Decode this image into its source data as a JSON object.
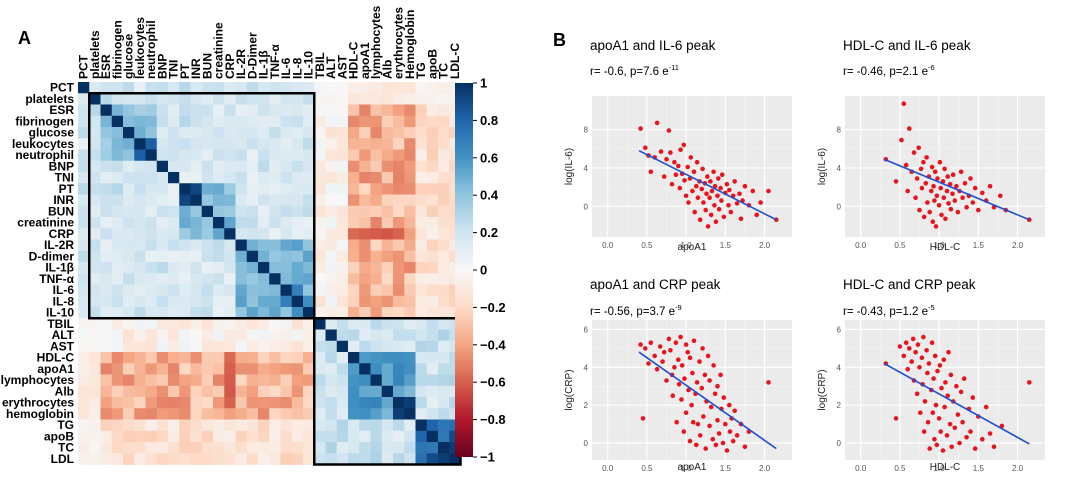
{
  "panel_a_label": "A",
  "panel_b_label": "B",
  "chart_data": [
    {
      "type": "heatmap",
      "title": "Correlation matrix",
      "variables_top": [
        "PCT",
        "platelets",
        "ESR",
        "fibrinogen",
        "glucose",
        "leukocytes",
        "neutrophil",
        "BNP",
        "TNI",
        "PT",
        "INR",
        "BUN",
        "creatinine",
        "CRP",
        "IL-2R",
        "D-Dimer",
        "IL-1β",
        "TNF-α",
        "IL-6",
        "IL-8",
        "IL-10",
        "TBIL",
        "ALT",
        "AST",
        "HDL-C",
        "apoA1",
        "lymphocytes",
        "Alb",
        "erythrocytes",
        "Hemoglobin",
        "TG",
        "apoB",
        "TC",
        "LDL-C"
      ],
      "variables_left": [
        "PCT",
        "platelets",
        "ESR",
        "fibrinogen",
        "glucose",
        "leukocytes",
        "neutrophil",
        "BNP",
        "TNI",
        "PT",
        "INR",
        "BUN",
        "creatinine",
        "CRP",
        "IL-2R",
        "D-dimer",
        "IL-1β",
        "TNF-α",
        "IL-6",
        "IL-8",
        "IL-10",
        "TBIL",
        "ALT",
        "AST",
        "HDL-C",
        "apoA1",
        "lymphocytes",
        "Alb",
        "erythrocytes",
        "hemoglobin",
        "TG",
        "apoB",
        "TC",
        "LDL"
      ],
      "colorbar": {
        "min": -1,
        "max": 1,
        "ticks": [
          "1",
          "0.8",
          "0.6",
          "0.4",
          "0.2",
          "0",
          "−0.2",
          "−0.4",
          "−0.6",
          "−0.8",
          "−1"
        ]
      },
      "clusters": [
        {
          "from": 1,
          "to": 20
        },
        {
          "from": 21,
          "to": 33
        }
      ],
      "colors": {
        "positive": "#053061",
        "neutral": "#f7f7f7",
        "negative": "#67001f",
        "box": "#000000"
      }
    },
    {
      "type": "scatter",
      "title": "apoA1 and IL-6 peak",
      "stat": {
        "r": "r= -0.6,",
        "p": "p=7.6 e",
        "exp": "-11"
      },
      "xlabel": "apoA1",
      "ylabel": "log(IL-6)",
      "xlim": [
        -0.2,
        2.35
      ],
      "ylim": [
        -3.2,
        11.5
      ],
      "xticks": [
        0.0,
        0.5,
        1.0,
        1.5,
        2.0
      ],
      "yticks": [
        0,
        4,
        8
      ],
      "fit": {
        "x": [
          0.4,
          2.15
        ],
        "y": [
          5.8,
          -1.4
        ]
      },
      "points": [
        [
          0.42,
          8.1
        ],
        [
          0.48,
          6.1
        ],
        [
          0.52,
          5.3
        ],
        [
          0.55,
          3.6
        ],
        [
          0.6,
          5.1
        ],
        [
          0.63,
          8.7
        ],
        [
          0.68,
          5.7
        ],
        [
          0.72,
          3.1
        ],
        [
          0.75,
          4.9
        ],
        [
          0.78,
          7.9
        ],
        [
          0.8,
          5.6
        ],
        [
          0.82,
          2.3
        ],
        [
          0.85,
          4.6
        ],
        [
          0.87,
          3.3
        ],
        [
          0.9,
          4.2
        ],
        [
          0.92,
          1.9
        ],
        [
          0.93,
          5.9
        ],
        [
          0.95,
          3.4
        ],
        [
          0.97,
          6.4
        ],
        [
          0.98,
          2.7
        ],
        [
          1.0,
          1.1
        ],
        [
          1.02,
          4.1
        ],
        [
          1.03,
          0.4
        ],
        [
          1.05,
          2.9
        ],
        [
          1.06,
          5.1
        ],
        [
          1.08,
          1.6
        ],
        [
          1.1,
          3.6
        ],
        [
          1.11,
          -0.6
        ],
        [
          1.13,
          2.1
        ],
        [
          1.14,
          4.6
        ],
        [
          1.15,
          0.9
        ],
        [
          1.17,
          2.6
        ],
        [
          1.18,
          -1.4
        ],
        [
          1.2,
          1.8
        ],
        [
          1.21,
          3.9
        ],
        [
          1.22,
          0.4
        ],
        [
          1.24,
          2.4
        ],
        [
          1.25,
          -0.4
        ],
        [
          1.26,
          1.3
        ],
        [
          1.27,
          3.1
        ],
        [
          1.28,
          -2.1
        ],
        [
          1.3,
          0.9
        ],
        [
          1.31,
          2.6
        ],
        [
          1.32,
          -0.9
        ],
        [
          1.33,
          1.6
        ],
        [
          1.35,
          3.6
        ],
        [
          1.36,
          0.1
        ],
        [
          1.37,
          2.1
        ],
        [
          1.38,
          -1.6
        ],
        [
          1.4,
          1.1
        ],
        [
          1.41,
          2.9
        ],
        [
          1.42,
          -0.3
        ],
        [
          1.44,
          1.9
        ],
        [
          1.45,
          0.6
        ],
        [
          1.46,
          3.3
        ],
        [
          1.48,
          -1.1
        ],
        [
          1.5,
          1.4
        ],
        [
          1.52,
          2.3
        ],
        [
          1.54,
          0.1
        ],
        [
          1.55,
          1.7
        ],
        [
          1.57,
          -0.6
        ],
        [
          1.6,
          1.1
        ],
        [
          1.62,
          2.6
        ],
        [
          1.65,
          0.3
        ],
        [
          1.68,
          1.3
        ],
        [
          1.7,
          -1.3
        ],
        [
          1.72,
          0.6
        ],
        [
          1.75,
          2.1
        ],
        [
          1.8,
          0.1
        ],
        [
          1.85,
          1.6
        ],
        [
          1.9,
          -0.9
        ],
        [
          1.95,
          0.4
        ],
        [
          2.05,
          1.6
        ],
        [
          2.15,
          -1.4
        ]
      ]
    },
    {
      "type": "scatter",
      "title": "HDL-C and IL-6 peak",
      "stat": {
        "r": "r= -0.46,",
        "p": "p=2.1 e",
        "exp": "-6"
      },
      "xlabel": "HDL-C",
      "ylabel": "log(IL-6)",
      "xlim": [
        -0.2,
        2.35
      ],
      "ylim": [
        -3.2,
        11.5
      ],
      "xticks": [
        0.0,
        0.5,
        1.0,
        1.5,
        2.0
      ],
      "yticks": [
        0,
        4,
        8
      ],
      "fit": {
        "x": [
          0.3,
          2.15
        ],
        "y": [
          4.9,
          -1.4
        ]
      },
      "points": [
        [
          0.32,
          4.9
        ],
        [
          0.45,
          2.6
        ],
        [
          0.52,
          6.9
        ],
        [
          0.55,
          10.7
        ],
        [
          0.58,
          4.3
        ],
        [
          0.6,
          1.6
        ],
        [
          0.62,
          8.1
        ],
        [
          0.65,
          3.6
        ],
        [
          0.68,
          5.6
        ],
        [
          0.7,
          0.9
        ],
        [
          0.72,
          2.9
        ],
        [
          0.74,
          6.1
        ],
        [
          0.75,
          -0.4
        ],
        [
          0.77,
          3.9
        ],
        [
          0.78,
          1.9
        ],
        [
          0.8,
          4.6
        ],
        [
          0.81,
          -1.1
        ],
        [
          0.83,
          2.4
        ],
        [
          0.84,
          5.1
        ],
        [
          0.85,
          0.4
        ],
        [
          0.87,
          3.1
        ],
        [
          0.88,
          -0.6
        ],
        [
          0.9,
          1.6
        ],
        [
          0.91,
          4.1
        ],
        [
          0.92,
          -1.6
        ],
        [
          0.93,
          2.1
        ],
        [
          0.94,
          0.6
        ],
        [
          0.95,
          3.6
        ],
        [
          0.96,
          -2.1
        ],
        [
          0.97,
          1.1
        ],
        [
          0.98,
          2.9
        ],
        [
          1.0,
          0.1
        ],
        [
          1.01,
          4.6
        ],
        [
          1.02,
          1.9
        ],
        [
          1.03,
          -0.9
        ],
        [
          1.05,
          2.6
        ],
        [
          1.06,
          0.9
        ],
        [
          1.07,
          3.9
        ],
        [
          1.08,
          -1.3
        ],
        [
          1.1,
          1.6
        ],
        [
          1.11,
          3.1
        ],
        [
          1.12,
          0.3
        ],
        [
          1.14,
          2.3
        ],
        [
          1.15,
          -0.3
        ],
        [
          1.17,
          1.3
        ],
        [
          1.18,
          3.3
        ],
        [
          1.2,
          0.6
        ],
        [
          1.22,
          2.1
        ],
        [
          1.24,
          -0.6
        ],
        [
          1.26,
          1.6
        ],
        [
          1.28,
          3.6
        ],
        [
          1.3,
          0.9
        ],
        [
          1.33,
          2.4
        ],
        [
          1.35,
          -0.1
        ],
        [
          1.38,
          1.1
        ],
        [
          1.4,
          2.9
        ],
        [
          1.43,
          0.4
        ],
        [
          1.46,
          1.9
        ],
        [
          1.5,
          -0.4
        ],
        [
          1.55,
          1.4
        ],
        [
          1.6,
          0.6
        ],
        [
          1.65,
          2.1
        ],
        [
          1.7,
          -0.1
        ],
        [
          1.78,
          1.1
        ],
        [
          1.85,
          -0.4
        ],
        [
          2.15,
          -1.4
        ]
      ]
    },
    {
      "type": "scatter",
      "title": "apoA1 and CRP peak",
      "stat": {
        "r": "r= -0.56,",
        "p": "p=3.7 e",
        "exp": "-9"
      },
      "xlabel": "apoA1",
      "ylabel": "log(CRP)",
      "xlim": [
        -0.2,
        2.35
      ],
      "ylim": [
        -0.9,
        6.5
      ],
      "xticks": [
        0.0,
        0.5,
        1.0,
        1.5,
        2.0
      ],
      "yticks": [
        0,
        2,
        4,
        6
      ],
      "fit": {
        "x": [
          0.4,
          2.15
        ],
        "y": [
          4.8,
          -0.3
        ]
      },
      "points": [
        [
          0.42,
          5.2
        ],
        [
          0.45,
          1.3
        ],
        [
          0.48,
          5.0
        ],
        [
          0.52,
          4.2
        ],
        [
          0.55,
          5.3
        ],
        [
          0.6,
          4.6
        ],
        [
          0.63,
          3.9
        ],
        [
          0.67,
          5.1
        ],
        [
          0.7,
          4.3
        ],
        [
          0.72,
          4.8
        ],
        [
          0.75,
          3.3
        ],
        [
          0.78,
          5.5
        ],
        [
          0.8,
          4.9
        ],
        [
          0.82,
          3.6
        ],
        [
          0.83,
          2.5
        ],
        [
          0.85,
          4.0
        ],
        [
          0.87,
          5.3
        ],
        [
          0.88,
          1.1
        ],
        [
          0.9,
          4.4
        ],
        [
          0.91,
          3.1
        ],
        [
          0.93,
          5.6
        ],
        [
          0.94,
          2.3
        ],
        [
          0.95,
          4.1
        ],
        [
          0.97,
          0.6
        ],
        [
          0.98,
          3.4
        ],
        [
          1.0,
          5.2
        ],
        [
          1.0,
          1.6
        ],
        [
          1.02,
          4.8
        ],
        [
          1.03,
          2.8
        ],
        [
          1.05,
          0.1
        ],
        [
          1.05,
          4.5
        ],
        [
          1.07,
          2.0
        ],
        [
          1.08,
          3.7
        ],
        [
          1.09,
          1.1
        ],
        [
          1.1,
          5.4
        ],
        [
          1.12,
          2.6
        ],
        [
          1.13,
          -0.1
        ],
        [
          1.14,
          3.2
        ],
        [
          1.15,
          1.0
        ],
        [
          1.17,
          4.3
        ],
        [
          1.18,
          0.4
        ],
        [
          1.2,
          2.9
        ],
        [
          1.21,
          5.0
        ],
        [
          1.22,
          1.4
        ],
        [
          1.24,
          3.6
        ],
        [
          1.25,
          -0.3
        ],
        [
          1.26,
          2.2
        ],
        [
          1.28,
          4.6
        ],
        [
          1.3,
          0.9
        ],
        [
          1.3,
          3.3
        ],
        [
          1.32,
          1.9
        ],
        [
          1.34,
          0.2
        ],
        [
          1.35,
          4.1
        ],
        [
          1.37,
          2.6
        ],
        [
          1.38,
          -0.1
        ],
        [
          1.4,
          3.0
        ],
        [
          1.4,
          1.2
        ],
        [
          1.42,
          0.5
        ],
        [
          1.44,
          3.6
        ],
        [
          1.45,
          1.8
        ],
        [
          1.47,
          0.0
        ],
        [
          1.48,
          2.4
        ],
        [
          1.5,
          1.0
        ],
        [
          1.52,
          -0.4
        ],
        [
          1.55,
          2.0
        ],
        [
          1.56,
          0.6
        ],
        [
          1.58,
          1.3
        ],
        [
          1.6,
          0.1
        ],
        [
          1.62,
          1.7
        ],
        [
          1.65,
          0.4
        ],
        [
          1.7,
          1.0
        ],
        [
          1.75,
          -0.2
        ],
        [
          1.8,
          0.6
        ],
        [
          2.05,
          3.2
        ]
      ]
    },
    {
      "type": "scatter",
      "title": "HDL-C and CRP peak",
      "stat": {
        "r": "r= -0.43,",
        "p": "p=1.2 e",
        "exp": "-5"
      },
      "xlabel": "HDL-C",
      "ylabel": "log(CRP)",
      "xlim": [
        -0.2,
        2.35
      ],
      "ylim": [
        -0.9,
        6.5
      ],
      "xticks": [
        0.0,
        0.5,
        1.0,
        1.5,
        2.0
      ],
      "yticks": [
        0,
        2,
        4,
        6
      ],
      "fit": {
        "x": [
          0.3,
          2.15
        ],
        "y": [
          4.2,
          -0.05
        ]
      },
      "points": [
        [
          0.32,
          4.2
        ],
        [
          0.45,
          1.3
        ],
        [
          0.5,
          5.1
        ],
        [
          0.55,
          4.6
        ],
        [
          0.58,
          5.3
        ],
        [
          0.6,
          3.9
        ],
        [
          0.62,
          5.0
        ],
        [
          0.65,
          4.3
        ],
        [
          0.67,
          5.5
        ],
        [
          0.68,
          3.3
        ],
        [
          0.7,
          4.8
        ],
        [
          0.72,
          2.6
        ],
        [
          0.73,
          5.2
        ],
        [
          0.75,
          4.0
        ],
        [
          0.76,
          1.6
        ],
        [
          0.78,
          4.5
        ],
        [
          0.79,
          3.1
        ],
        [
          0.8,
          5.6
        ],
        [
          0.81,
          0.6
        ],
        [
          0.82,
          2.2
        ],
        [
          0.84,
          4.9
        ],
        [
          0.85,
          3.7
        ],
        [
          0.86,
          1.1
        ],
        [
          0.87,
          4.2
        ],
        [
          0.88,
          -0.3
        ],
        [
          0.9,
          2.8
        ],
        [
          0.91,
          5.3
        ],
        [
          0.92,
          1.6
        ],
        [
          0.93,
          3.4
        ],
        [
          0.94,
          0.2
        ],
        [
          0.95,
          4.6
        ],
        [
          0.96,
          2.0
        ],
        [
          0.97,
          -0.1
        ],
        [
          0.98,
          3.8
        ],
        [
          1.0,
          1.3
        ],
        [
          1.01,
          4.1
        ],
        [
          1.02,
          0.6
        ],
        [
          1.03,
          2.9
        ],
        [
          1.05,
          -0.4
        ],
        [
          1.06,
          4.4
        ],
        [
          1.07,
          1.9
        ],
        [
          1.08,
          3.2
        ],
        [
          1.1,
          0.4
        ],
        [
          1.11,
          2.5
        ],
        [
          1.12,
          4.8
        ],
        [
          1.14,
          1.0
        ],
        [
          1.15,
          3.6
        ],
        [
          1.16,
          -0.2
        ],
        [
          1.18,
          2.2
        ],
        [
          1.2,
          0.8
        ],
        [
          1.22,
          3.0
        ],
        [
          1.24,
          1.5
        ],
        [
          1.26,
          0.0
        ],
        [
          1.28,
          2.7
        ],
        [
          1.3,
          1.1
        ],
        [
          1.32,
          3.4
        ],
        [
          1.35,
          0.3
        ],
        [
          1.38,
          1.8
        ],
        [
          1.4,
          0.6
        ],
        [
          1.43,
          2.4
        ],
        [
          1.46,
          -0.3
        ],
        [
          1.5,
          1.4
        ],
        [
          1.55,
          0.2
        ],
        [
          1.6,
          1.9
        ],
        [
          1.65,
          0.5
        ],
        [
          1.7,
          -0.2
        ],
        [
          1.8,
          0.9
        ],
        [
          2.15,
          3.2
        ]
      ]
    }
  ]
}
